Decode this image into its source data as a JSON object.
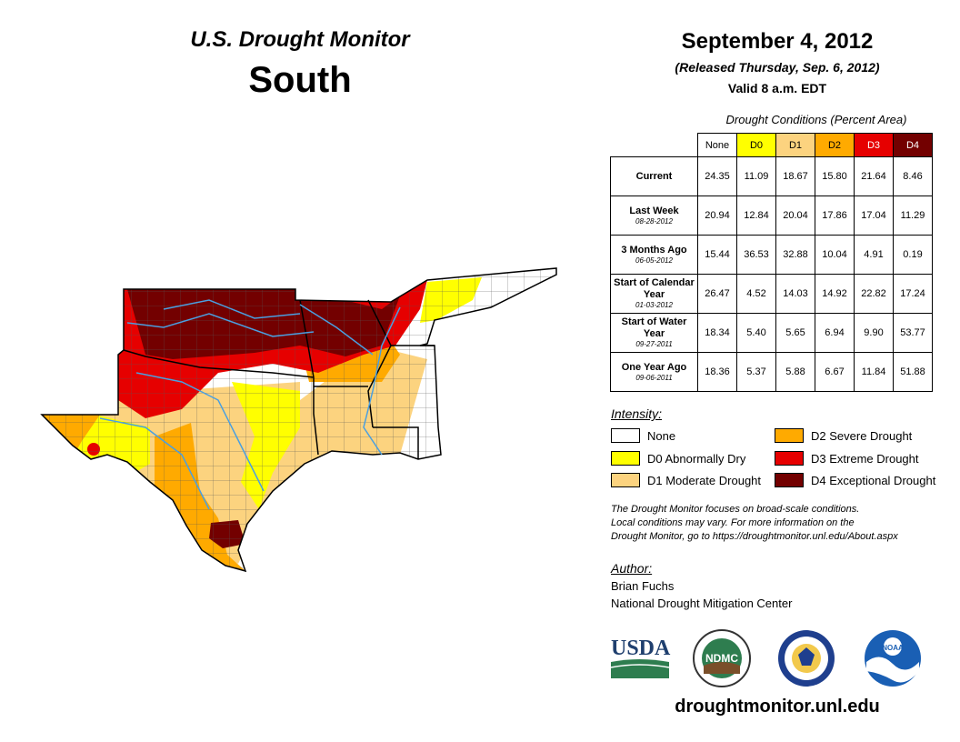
{
  "header": {
    "title": "U.S. Drought Monitor",
    "region": "South",
    "date": "September 4, 2012",
    "released": "(Released Thursday, Sep. 6, 2012)",
    "valid": "Valid 8 a.m. EDT"
  },
  "table": {
    "caption": "Drought Conditions (Percent Area)",
    "columns": [
      {
        "label": "None",
        "color": "#ffffff"
      },
      {
        "label": "D0",
        "color": "#ffff00"
      },
      {
        "label": "D1",
        "color": "#fcd37f"
      },
      {
        "label": "D2",
        "color": "#ffaa00"
      },
      {
        "label": "D3",
        "color": "#e60000"
      },
      {
        "label": "D4",
        "color": "#730000"
      }
    ],
    "rows": [
      {
        "label": "Current",
        "sub": "",
        "values": [
          "24.35",
          "11.09",
          "18.67",
          "15.80",
          "21.64",
          "8.46"
        ]
      },
      {
        "label": "Last Week",
        "sub": "08-28-2012",
        "values": [
          "20.94",
          "12.84",
          "20.04",
          "17.86",
          "17.04",
          "11.29"
        ]
      },
      {
        "label": "3 Months Ago",
        "sub": "06-05-2012",
        "values": [
          "15.44",
          "36.53",
          "32.88",
          "10.04",
          "4.91",
          "0.19"
        ]
      },
      {
        "label": "Start of Calendar Year",
        "sub": "01-03-2012",
        "values": [
          "26.47",
          "4.52",
          "14.03",
          "14.92",
          "22.82",
          "17.24"
        ]
      },
      {
        "label": "Start of Water Year",
        "sub": "09-27-2011",
        "values": [
          "18.34",
          "5.40",
          "5.65",
          "6.94",
          "9.90",
          "53.77"
        ]
      },
      {
        "label": "One Year Ago",
        "sub": "09-06-2011",
        "values": [
          "18.36",
          "5.37",
          "5.88",
          "6.67",
          "11.84",
          "51.88"
        ]
      }
    ]
  },
  "legend": {
    "title": "Intensity:",
    "items": [
      {
        "label": "None",
        "color": "#ffffff"
      },
      {
        "label": "D0 Abnormally Dry",
        "color": "#ffff00"
      },
      {
        "label": "D1 Moderate Drought",
        "color": "#fcd37f"
      },
      {
        "label": "D2 Severe Drought",
        "color": "#ffaa00"
      },
      {
        "label": "D3 Extreme Drought",
        "color": "#e60000"
      },
      {
        "label": "D4 Exceptional Drought",
        "color": "#730000"
      }
    ]
  },
  "note": {
    "line1": "The Drought Monitor focuses on broad-scale conditions.",
    "line2": "Local conditions may vary. For more information on the",
    "line3": "Drought Monitor, go to https://droughtmonitor.unl.edu/About.aspx"
  },
  "author": {
    "label": "Author:",
    "name": "Brian Fuchs",
    "org": "National Drought Mitigation Center"
  },
  "logos": {
    "usda": "USDA",
    "ndmc": "NDMC",
    "noaa": "NOAA"
  },
  "footer": {
    "site": "droughtmonitor.unl.edu"
  },
  "colors": {
    "none": "#ffffff",
    "d0": "#ffff00",
    "d1": "#fcd37f",
    "d2": "#ffaa00",
    "d3": "#e60000",
    "d4": "#730000",
    "water": "#4a9fe0"
  }
}
